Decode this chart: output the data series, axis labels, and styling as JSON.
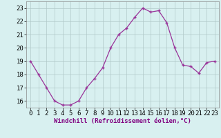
{
  "x": [
    0,
    1,
    2,
    3,
    4,
    5,
    6,
    7,
    8,
    9,
    10,
    11,
    12,
    13,
    14,
    15,
    16,
    17,
    18,
    19,
    20,
    21,
    22,
    23
  ],
  "y": [
    19.0,
    18.0,
    17.0,
    16.0,
    15.7,
    15.7,
    16.0,
    17.0,
    17.7,
    18.5,
    20.0,
    21.0,
    21.5,
    22.3,
    23.0,
    22.7,
    22.8,
    21.9,
    20.0,
    18.7,
    18.6,
    18.1,
    18.9,
    19.0
  ],
  "line_color": "#993399",
  "marker": "+",
  "bg_color": "#d8f0f0",
  "grid_color": "#b0c8c8",
  "xlabel": "Windchill (Refroidissement éolien,°C)",
  "xlim": [
    -0.5,
    23.5
  ],
  "ylim": [
    15.5,
    23.5
  ],
  "yticks": [
    16,
    17,
    18,
    19,
    20,
    21,
    22,
    23
  ],
  "xticks": [
    0,
    1,
    2,
    3,
    4,
    5,
    6,
    7,
    8,
    9,
    10,
    11,
    12,
    13,
    14,
    15,
    16,
    17,
    18,
    19,
    20,
    21,
    22,
    23
  ],
  "xlabel_fontsize": 6.5,
  "tick_fontsize": 6.5,
  "spine_color": "#888888"
}
